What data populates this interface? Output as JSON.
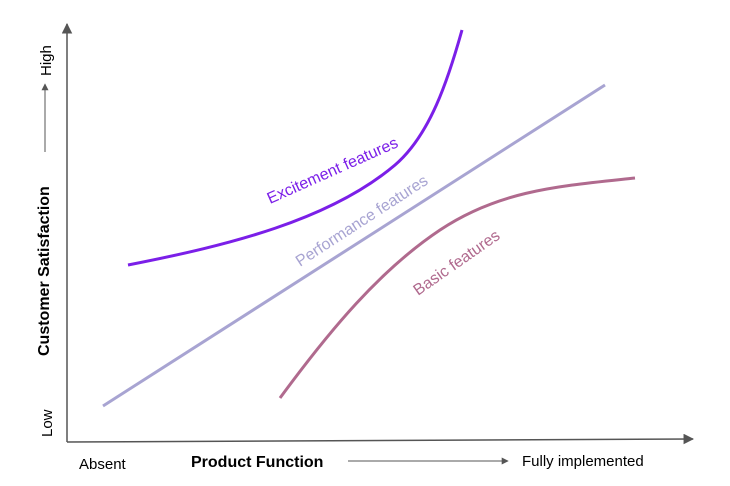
{
  "chart_data": {
    "type": "line",
    "title": "",
    "xlabel": "Product Function",
    "ylabel": "Customer Satisfaction",
    "x_min_label": "Absent",
    "x_max_label": "Fully implemented",
    "y_min_label": "Low",
    "y_max_label": "High",
    "series": [
      {
        "name": "Excitement features",
        "color": "#7b1fe8"
      },
      {
        "name": "Performance features",
        "color": "#a8a4d2"
      },
      {
        "name": "Basic features",
        "color": "#b06a8e"
      }
    ]
  },
  "colors": {
    "axis": "#555555",
    "text": "#000000"
  }
}
